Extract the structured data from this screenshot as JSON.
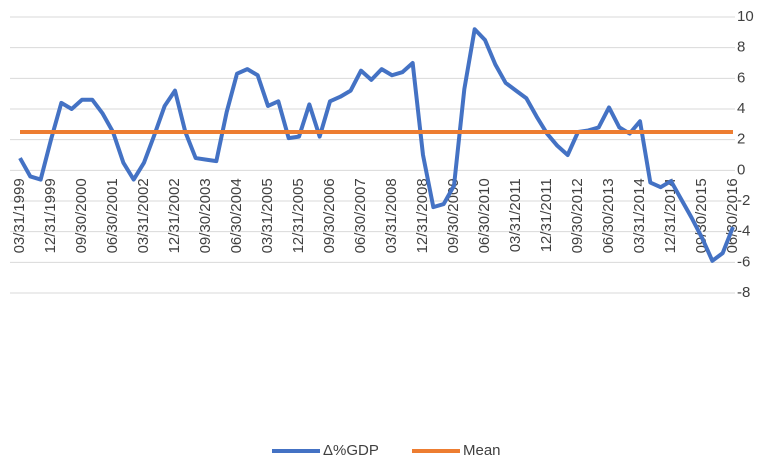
{
  "chart_data": {
    "type": "line",
    "categories": [
      "03/31/1999",
      null,
      null,
      "12/31/1999",
      null,
      null,
      "09/30/2000",
      null,
      null,
      "06/30/2001",
      null,
      null,
      "03/31/2002",
      null,
      null,
      "12/31/2002",
      null,
      null,
      "09/30/2003",
      null,
      null,
      "06/30/2004",
      null,
      null,
      "03/31/2005",
      null,
      null,
      "12/31/2005",
      null,
      null,
      "09/30/2006",
      null,
      null,
      "06/30/2007",
      null,
      null,
      "03/31/2008",
      null,
      null,
      "12/31/2008",
      null,
      null,
      "09/30/2009",
      null,
      null,
      "06/30/2010",
      null,
      null,
      "03/31/2011",
      null,
      null,
      "12/31/2011",
      null,
      null,
      "09/30/2012",
      null,
      null,
      "06/30/2013",
      null,
      null,
      "03/31/2014",
      null,
      null,
      "12/31/2014",
      null,
      null,
      "09/30/2015",
      null,
      null,
      "06/30/2016"
    ],
    "series": [
      {
        "name": "Δ%GDP",
        "color": "#4472c4",
        "values": [
          0.8,
          -0.4,
          -0.6,
          2.0,
          4.4,
          4.0,
          4.6,
          4.6,
          3.7,
          2.5,
          0.5,
          -0.6,
          0.5,
          2.3,
          4.2,
          5.2,
          2.5,
          0.8,
          0.7,
          0.6,
          3.8,
          6.3,
          6.6,
          6.2,
          4.2,
          4.5,
          2.1,
          2.2,
          4.3,
          2.2,
          4.5,
          4.8,
          5.2,
          6.5,
          5.9,
          6.6,
          6.2,
          6.4,
          7.0,
          1.0,
          -2.4,
          -2.2,
          -1.0,
          5.3,
          9.2,
          8.5,
          6.9,
          5.7,
          5.2,
          4.7,
          3.5,
          2.4,
          1.6,
          1.0,
          2.5,
          2.6,
          2.8,
          4.1,
          2.8,
          2.4,
          3.2,
          -0.8,
          -1.1,
          -0.7,
          -1.9,
          -3.1,
          -4.4,
          -5.9,
          -5.4,
          -3.7
        ]
      },
      {
        "name": "Mean",
        "color": "#ed7d31",
        "values": [
          2.5,
          2.5,
          2.5,
          2.5,
          2.5,
          2.5,
          2.5,
          2.5,
          2.5,
          2.5,
          2.5,
          2.5,
          2.5,
          2.5,
          2.5,
          2.5,
          2.5,
          2.5,
          2.5,
          2.5,
          2.5,
          2.5,
          2.5,
          2.5,
          2.5,
          2.5,
          2.5,
          2.5,
          2.5,
          2.5,
          2.5,
          2.5,
          2.5,
          2.5,
          2.5,
          2.5,
          2.5,
          2.5,
          2.5,
          2.5,
          2.5,
          2.5,
          2.5,
          2.5,
          2.5,
          2.5,
          2.5,
          2.5,
          2.5,
          2.5,
          2.5,
          2.5,
          2.5,
          2.5,
          2.5,
          2.5,
          2.5,
          2.5,
          2.5,
          2.5,
          2.5,
          2.5,
          2.5,
          2.5,
          2.5,
          2.5,
          2.5,
          2.5,
          2.5,
          2.5
        ]
      }
    ],
    "ylim": [
      -8,
      10
    ],
    "yticks": [
      -8,
      -6,
      -4,
      -2,
      0,
      2,
      4,
      6,
      8,
      10
    ],
    "grid": true,
    "legend": "bottom"
  }
}
